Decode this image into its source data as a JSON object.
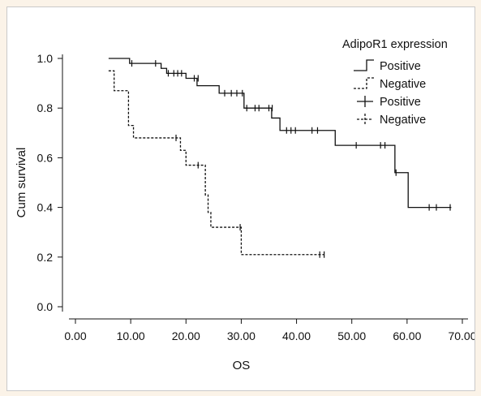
{
  "chart_data": {
    "type": "line",
    "step": true,
    "title": "",
    "xlabel": "OS",
    "ylabel": "Cum survival",
    "xlim": [
      0,
      70
    ],
    "ylim": [
      0,
      1.0
    ],
    "x_ticks": [
      "0.00",
      "10.00",
      "20.00",
      "30.00",
      "40.00",
      "50.00",
      "60.00",
      "70.00"
    ],
    "y_ticks": [
      "0.0",
      "0.2",
      "0.4",
      "0.6",
      "0.8",
      "1.0"
    ],
    "grid": false,
    "legend": {
      "title": "AdipoR1 expression",
      "placement": "top-right",
      "entries": [
        "Positive",
        "Negative",
        "Positive",
        "Negative"
      ]
    },
    "series": [
      {
        "name": "Positive",
        "style": "solid",
        "color": "#111111",
        "x": [
          6.0,
          9.8,
          15.5,
          16.5,
          20.0,
          22.0,
          26.0,
          30.5,
          35.5,
          37.0,
          47.0,
          57.8,
          60.2,
          68.0
        ],
        "y": [
          1.0,
          0.98,
          0.96,
          0.94,
          0.92,
          0.89,
          0.86,
          0.8,
          0.76,
          0.71,
          0.65,
          0.54,
          0.4,
          0.4
        ],
        "censor_x": [
          10.2,
          14.5,
          16.8,
          17.8,
          18.5,
          19.2,
          21.5,
          22.2,
          27.0,
          28.2,
          29.2,
          30.2,
          31.0,
          32.5,
          33.2,
          35.0,
          35.6,
          38.2,
          39.0,
          39.8,
          42.8,
          43.8,
          50.8,
          55.2,
          56.0,
          58.0,
          64.0,
          65.3,
          67.8
        ],
        "censor_y": [
          0.98,
          0.98,
          0.94,
          0.94,
          0.94,
          0.94,
          0.92,
          0.92,
          0.86,
          0.86,
          0.86,
          0.86,
          0.8,
          0.8,
          0.8,
          0.8,
          0.8,
          0.71,
          0.71,
          0.71,
          0.71,
          0.71,
          0.65,
          0.65,
          0.65,
          0.54,
          0.4,
          0.4,
          0.4
        ]
      },
      {
        "name": "Negative",
        "style": "dashed",
        "color": "#111111",
        "x": [
          6.0,
          7.0,
          9.0,
          9.6,
          10.5,
          18.5,
          19.0,
          20.0,
          22.5,
          23.5,
          24.0,
          24.5,
          30.0,
          45.0
        ],
        "y": [
          0.95,
          0.87,
          0.87,
          0.73,
          0.68,
          0.68,
          0.63,
          0.57,
          0.57,
          0.45,
          0.38,
          0.32,
          0.21,
          0.21
        ],
        "censor_x": [
          18.2,
          22.2,
          29.8,
          44.2,
          45.0
        ],
        "censor_y": [
          0.68,
          0.57,
          0.32,
          0.21,
          0.21
        ]
      }
    ]
  }
}
